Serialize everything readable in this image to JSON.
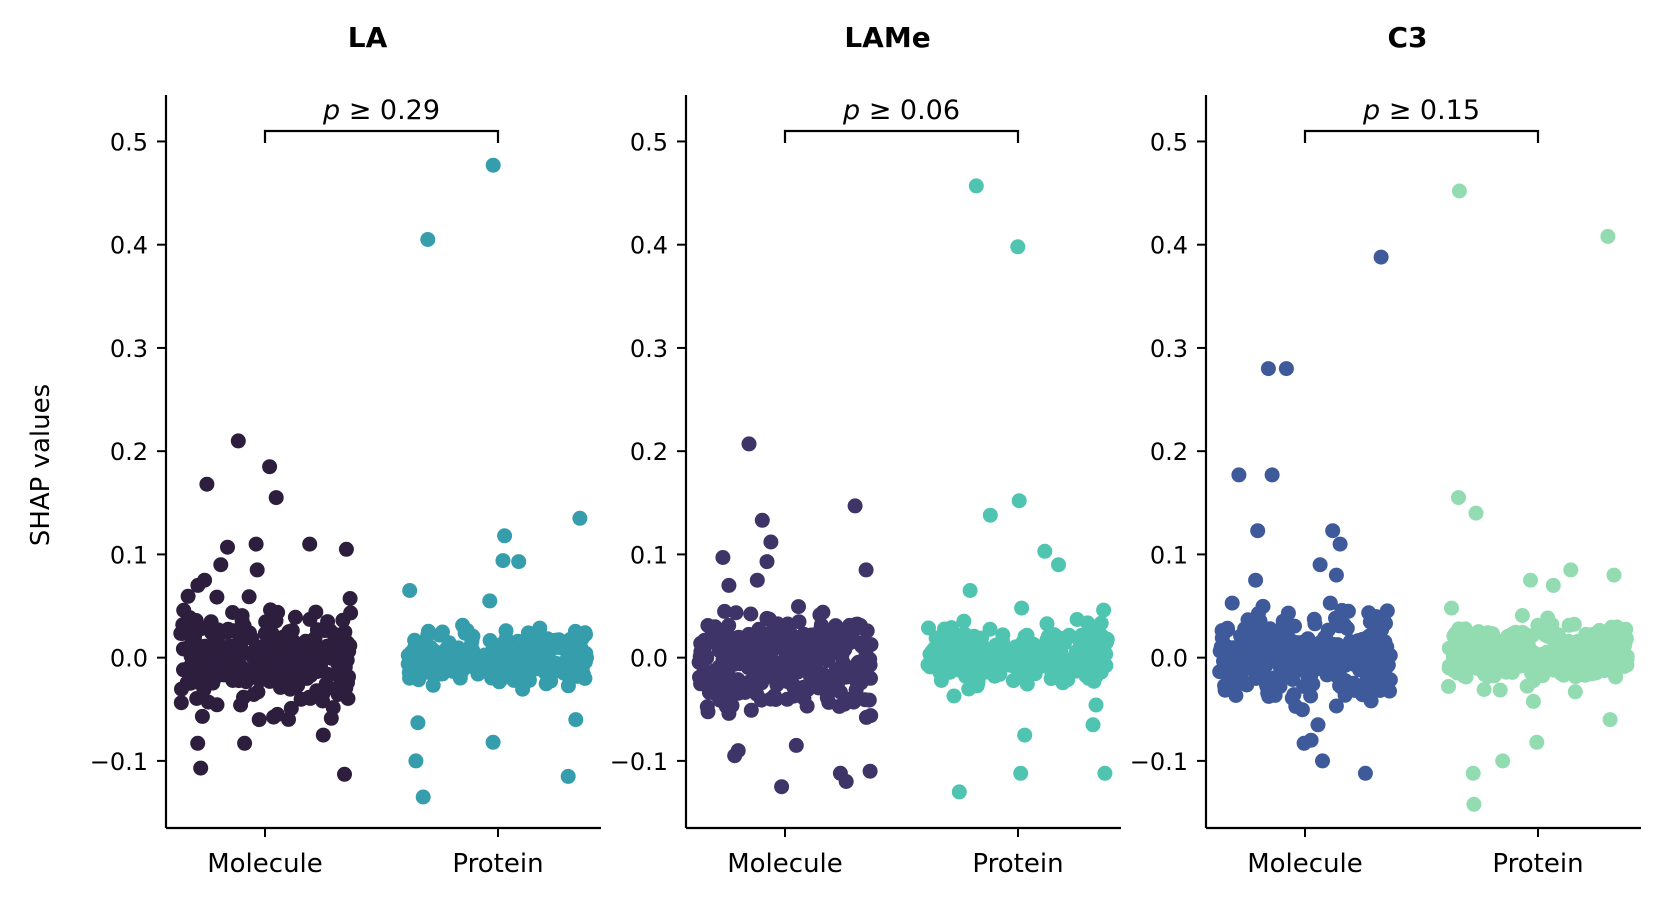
{
  "figure": {
    "ylabel": "SHAP values"
  },
  "chart_data": [
    {
      "type": "scatter",
      "title": "LA",
      "categories": [
        "Molecule",
        "Protein"
      ],
      "ylabel": "SHAP values",
      "ylim": [
        -0.165,
        0.545
      ],
      "yticks": [
        -0.1,
        0.0,
        0.1,
        0.2,
        0.3,
        0.4,
        0.5
      ],
      "ytick_labels": [
        "−0.1",
        "0.0",
        "0.1",
        "0.2",
        "0.3",
        "0.4",
        "0.5"
      ],
      "annotation": {
        "label": "p ≥ 0.29",
        "italic_prefix": "p",
        "rest": " ≥ 0.29"
      },
      "series": [
        {
          "category": "Molecule",
          "color": "#2d1e3e",
          "outliers": [
            0.21,
            0.185,
            0.168,
            0.155,
            0.107,
            0.105,
            0.11,
            0.11,
            0.09,
            0.085,
            0.075,
            0.07,
            -0.083,
            -0.075,
            -0.083,
            -0.107,
            -0.113,
            -0.06,
            -0.055
          ],
          "bulk": {
            "n": 300,
            "center": 0.0,
            "spread": 0.022
          }
        },
        {
          "category": "Protein",
          "color": "#359dab",
          "outliers": [
            0.477,
            0.405,
            0.135,
            0.118,
            0.093,
            0.094,
            0.065,
            0.055,
            -0.063,
            -0.06,
            -0.082,
            -0.1,
            -0.115,
            -0.135
          ],
          "bulk": {
            "n": 260,
            "center": 0.0,
            "spread": 0.012
          }
        }
      ]
    },
    {
      "type": "scatter",
      "title": "LAMe",
      "categories": [
        "Molecule",
        "Protein"
      ],
      "ylabel": "",
      "ylim": [
        -0.165,
        0.545
      ],
      "yticks": [
        -0.1,
        0.0,
        0.1,
        0.2,
        0.3,
        0.4,
        0.5
      ],
      "ytick_labels": [
        "−0.1",
        "0.0",
        "0.1",
        "0.2",
        "0.3",
        "0.4",
        "0.5"
      ],
      "annotation": {
        "label": "p ≥ 0.06",
        "italic_prefix": "p",
        "rest": " ≥ 0.06"
      },
      "series": [
        {
          "category": "Molecule",
          "color": "#3f3468",
          "outliers": [
            0.207,
            0.147,
            0.133,
            0.112,
            0.097,
            0.093,
            0.085,
            0.075,
            0.07,
            -0.085,
            -0.09,
            -0.11,
            -0.112,
            -0.12,
            -0.125,
            -0.095
          ],
          "bulk": {
            "n": 300,
            "center": -0.003,
            "spread": 0.022
          }
        },
        {
          "category": "Protein",
          "color": "#4fc4b0",
          "outliers": [
            0.457,
            0.398,
            0.152,
            0.138,
            0.103,
            0.09,
            0.065,
            0.048,
            -0.075,
            -0.065,
            -0.112,
            -0.13,
            -0.112
          ],
          "bulk": {
            "n": 260,
            "center": 0.0,
            "spread": 0.014
          }
        }
      ]
    },
    {
      "type": "scatter",
      "title": "C3",
      "categories": [
        "Molecule",
        "Protein"
      ],
      "ylabel": "",
      "ylim": [
        -0.165,
        0.545
      ],
      "yticks": [
        -0.1,
        0.0,
        0.1,
        0.2,
        0.3,
        0.4,
        0.5
      ],
      "ytick_labels": [
        "−0.1",
        "0.0",
        "0.1",
        "0.2",
        "0.3",
        "0.4",
        "0.5"
      ],
      "annotation": {
        "label": "p ≥ 0.15",
        "italic_prefix": "p",
        "rest": " ≥ 0.15"
      },
      "series": [
        {
          "category": "Molecule",
          "color": "#3e5a9a",
          "outliers": [
            0.388,
            0.28,
            0.28,
            0.177,
            0.177,
            0.123,
            0.123,
            0.11,
            0.09,
            0.08,
            0.075,
            -0.08,
            -0.083,
            -0.1,
            -0.112,
            -0.065
          ],
          "bulk": {
            "n": 300,
            "center": 0.0,
            "spread": 0.02
          }
        },
        {
          "category": "Protein",
          "color": "#93dcb2",
          "outliers": [
            0.452,
            0.408,
            0.155,
            0.14,
            0.085,
            0.08,
            0.075,
            0.07,
            0.048,
            -0.06,
            -0.082,
            -0.1,
            -0.112,
            -0.142
          ],
          "bulk": {
            "n": 260,
            "center": 0.005,
            "spread": 0.014
          }
        }
      ]
    }
  ]
}
